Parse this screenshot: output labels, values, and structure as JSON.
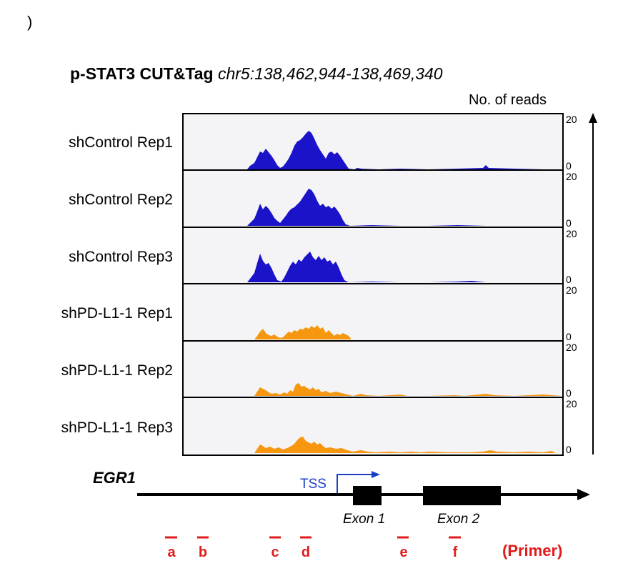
{
  "corner_mark": ")",
  "title": {
    "bold": "p-STAT3 CUT&Tag",
    "coords": "chr5:138,462,944-138,469,340"
  },
  "y_axis_label": "No. of reads",
  "tracks": [
    {
      "label": "shControl Rep1",
      "color": "#1a13c9",
      "max": "20",
      "min": "0"
    },
    {
      "label": "shControl Rep2",
      "color": "#1a13c9",
      "max": "20",
      "min": "0"
    },
    {
      "label": "shControl Rep3",
      "color": "#1a13c9",
      "max": "20",
      "min": "0"
    },
    {
      "label": "shPD-L1-1 Rep1",
      "color": "#f7960f",
      "max": "20",
      "min": "0"
    },
    {
      "label": "shPD-L1-1 Rep2",
      "color": "#f7960f",
      "max": "20",
      "min": "0"
    },
    {
      "label": "shPD-L1-1 Rep3",
      "color": "#f7960f",
      "max": "20",
      "min": "0"
    }
  ],
  "gene": {
    "name": "EGR1",
    "tss_label": "TSS",
    "exons": [
      "Exon 1",
      "Exon 2"
    ]
  },
  "primers": {
    "letters": [
      "a",
      "b",
      "c",
      "d",
      "e",
      "f"
    ],
    "legend": "(Primer)",
    "color": "#e01b1b"
  }
}
